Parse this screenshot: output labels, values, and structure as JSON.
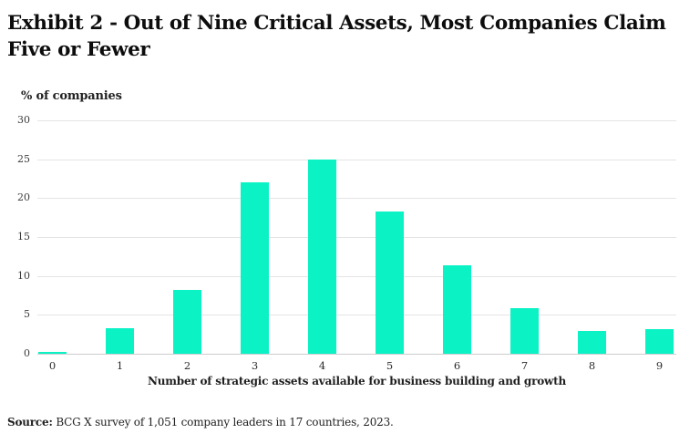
{
  "header": {
    "title_line1": "Exhibit 2 - Out of Nine Critical Assets, Most Companies Claim",
    "title_line2": "Five or Fewer"
  },
  "chart_data": {
    "type": "bar",
    "title": "Exhibit 2 - Out of Nine Critical Assets, Most Companies Claim Five or Fewer",
    "ylabel": "% of companies",
    "xlabel": "Number of strategic assets available for business building and growth",
    "categories": [
      "0",
      "1",
      "2",
      "3",
      "4",
      "5",
      "6",
      "7",
      "8",
      "9"
    ],
    "values": [
      0.2,
      3.3,
      8.2,
      22,
      25,
      18.3,
      11.4,
      5.9,
      2.9,
      3.2
    ],
    "ylim": [
      0,
      30
    ],
    "yticks": [
      0,
      5,
      10,
      15,
      20,
      25,
      30
    ],
    "grid": true,
    "legend": "none",
    "bar_color": "#0bf2c5",
    "gridline_color": "#e4e4e4",
    "baseline_color": "#cccccc"
  },
  "footer": {
    "source_label": "Source:",
    "source_text": " BCG X survey of 1,051 company leaders in 17 countries, 2023."
  }
}
